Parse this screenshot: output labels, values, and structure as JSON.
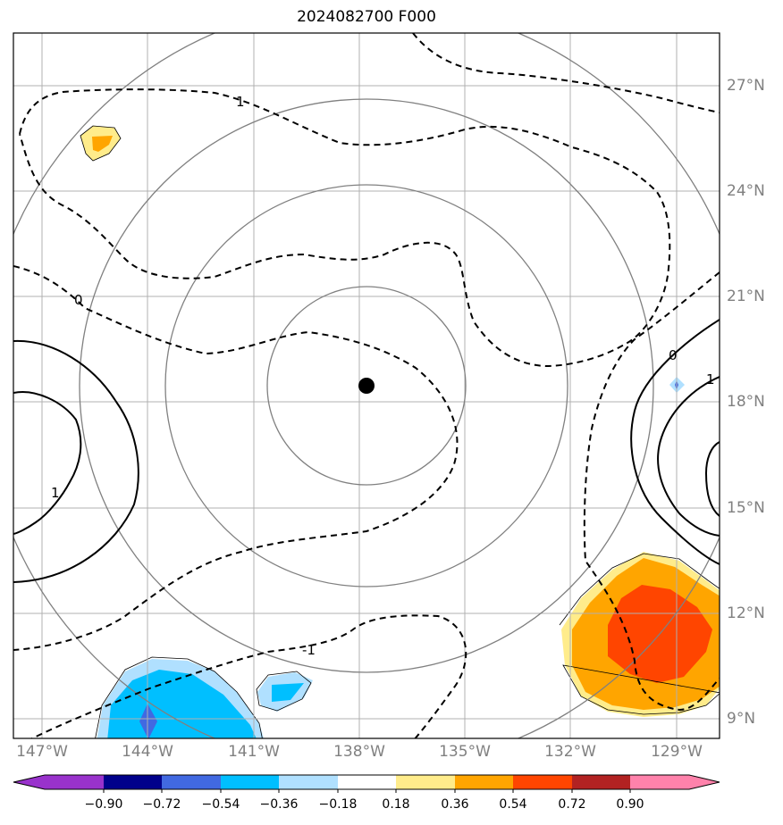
{
  "title": "2024082700 F000",
  "lon_labels": [
    "147°W",
    "144°W",
    "141°W",
    "138°W",
    "135°W",
    "132°W",
    "129°W"
  ],
  "lat_labels": [
    "27°N",
    "24°N",
    "21°N",
    "18°N",
    "15°N",
    "12°N",
    "9°N"
  ],
  "contour_labels": [
    "1",
    "0",
    "0",
    "1",
    "1",
    "-1"
  ],
  "colorbar": {
    "tick_labels": [
      "−0.90",
      "−0.72",
      "−0.54",
      "−0.36",
      "−0.18",
      "0.18",
      "0.36",
      "0.54",
      "0.72",
      "0.90"
    ],
    "colors": [
      "#9932cc",
      "#00008b",
      "#4169e1",
      "#00bfff",
      "#b0e0ff",
      "#ffffff",
      "#ffec8b",
      "#ffa500",
      "#ff4500",
      "#b22222",
      "#ff82ab"
    ]
  },
  "center_marker_icon": "storm-center-dot",
  "range_ring_icon": "range-circle"
}
